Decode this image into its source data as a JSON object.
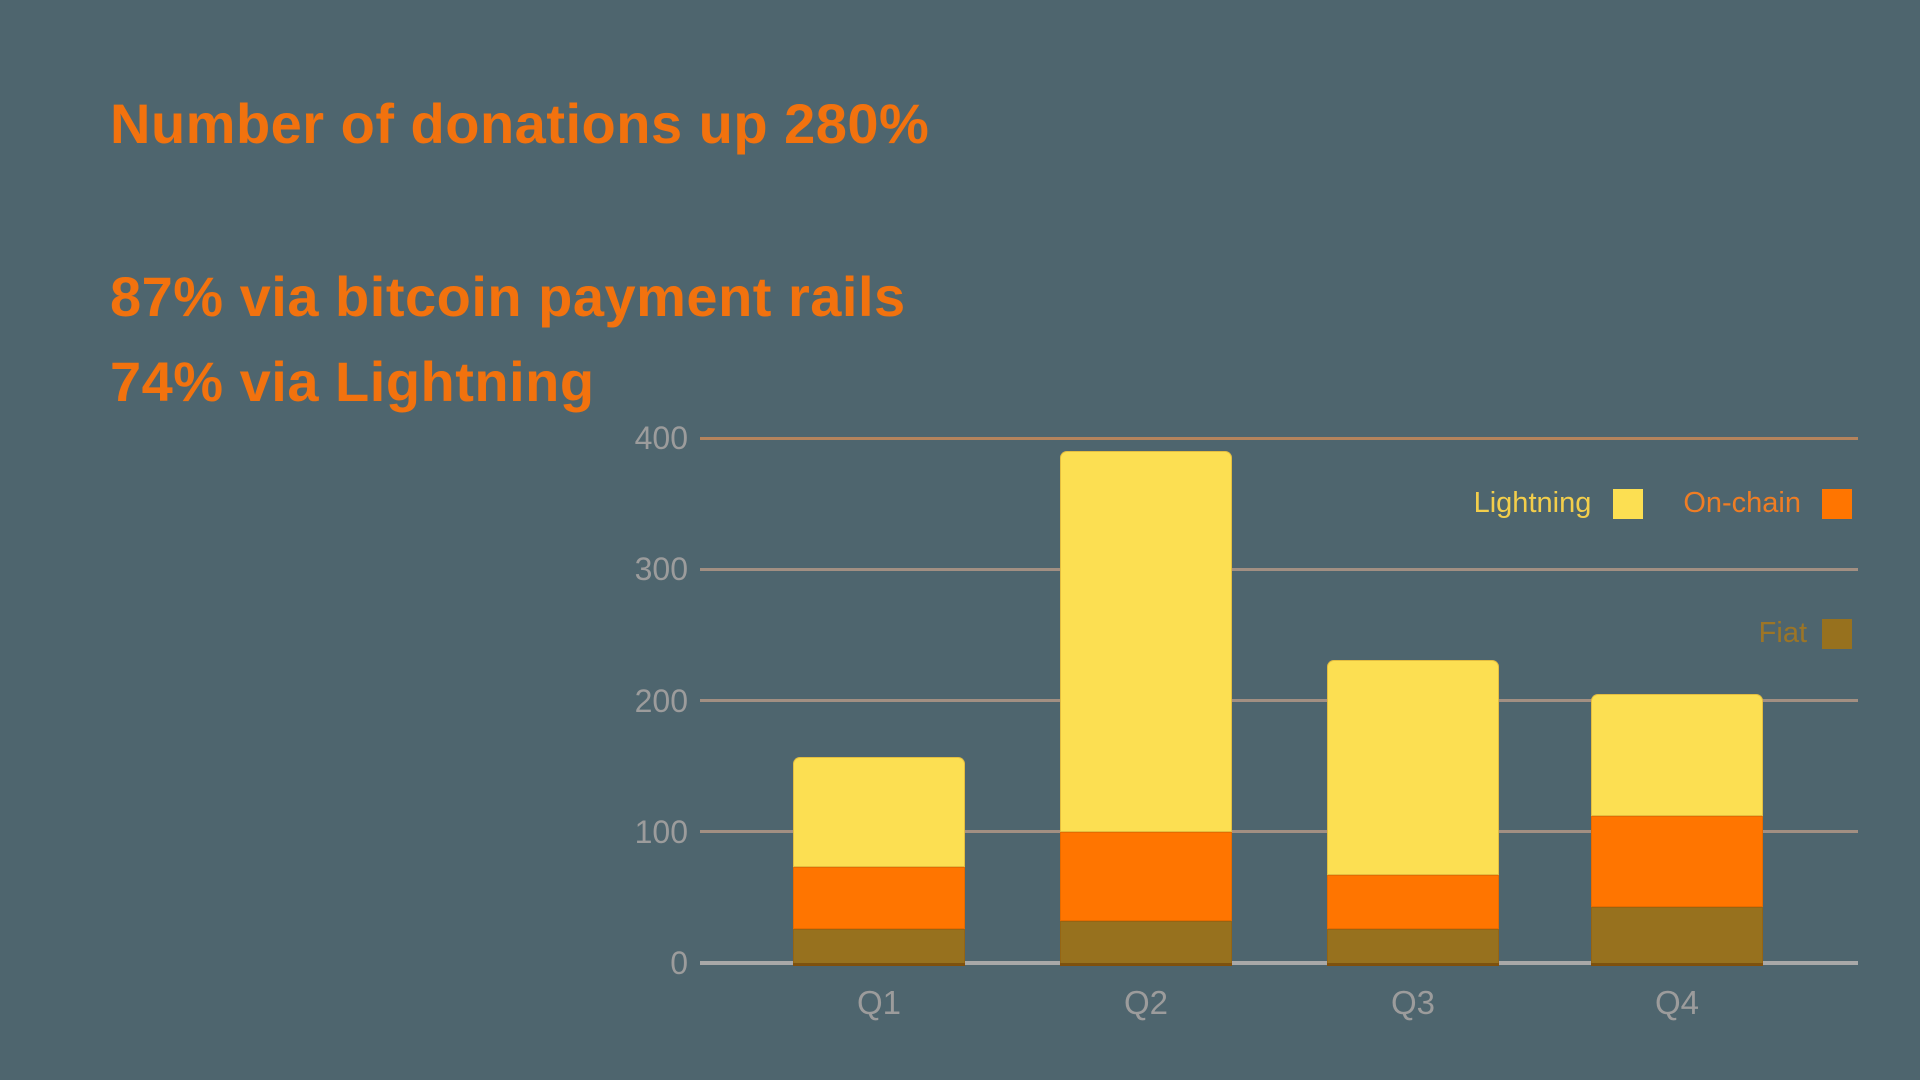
{
  "slide": {
    "title": "Number of donations up 280%",
    "stats": [
      "87% via bitcoin payment rails",
      "74% via Lightning"
    ]
  },
  "colors": {
    "background": "#4E656E",
    "headline": "#F2720E",
    "axis_label": "#9C9C9C",
    "gridline": "#A28F82",
    "gridline_top": "#B5835C",
    "axis_line": "#A8A8A8"
  },
  "chart_data": {
    "type": "bar",
    "stacked": true,
    "title": "",
    "xlabel": "",
    "ylabel": "",
    "categories": [
      "Q1",
      "Q2",
      "Q3",
      "Q4"
    ],
    "series": [
      {
        "name": "Lightning",
        "color": "#FCDF52",
        "values": [
          84,
          290,
          164,
          93
        ]
      },
      {
        "name": "On-chain",
        "color": "#FF7500",
        "values": [
          47,
          68,
          41,
          69
        ]
      },
      {
        "name": "Fiat",
        "color": "#97711E",
        "values": [
          26,
          32,
          26,
          43
        ]
      }
    ],
    "totals": [
      157,
      390,
      231,
      205
    ],
    "ylim": [
      0,
      400
    ],
    "yticks": [
      0,
      100,
      200,
      300,
      400
    ],
    "grid": true,
    "legend_position": "upper-right"
  },
  "legend": {
    "entries": [
      {
        "series": 0,
        "text_color": "#F3CE4B"
      },
      {
        "series": 1,
        "text_color": "#EF7D24"
      },
      {
        "series": 2,
        "text_color": "#9C7526"
      }
    ]
  }
}
